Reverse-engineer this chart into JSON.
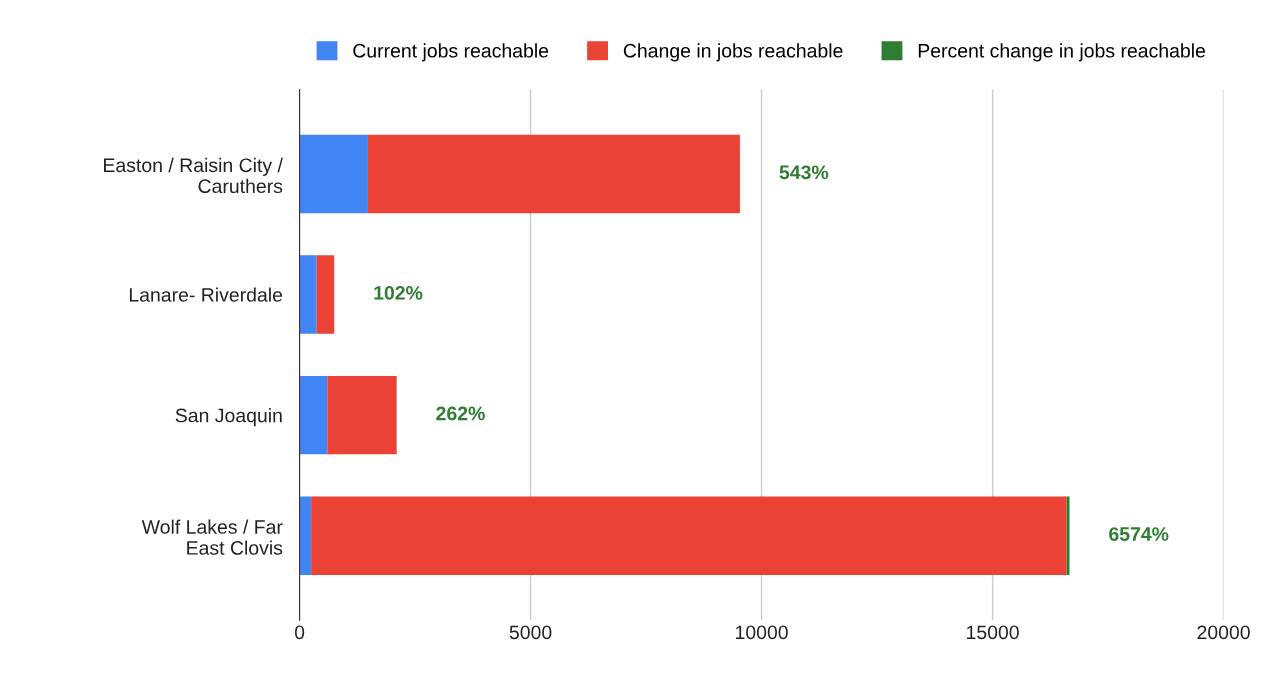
{
  "chart_data": {
    "type": "bar",
    "orientation": "horizontal",
    "stacked": true,
    "categories": [
      "Easton / Raisin City /\nCaruthers",
      "Lanare- Riverdale",
      "San Joaquin",
      "Wolf Lakes / Far\nEast Clovis"
    ],
    "series": [
      {
        "name": "Current jobs reachable",
        "color": "#4285f4",
        "values": [
          1480,
          370,
          600,
          250
        ]
      },
      {
        "name": "Change in jobs reachable",
        "color": "#ea4335",
        "values": [
          8050,
          380,
          1500,
          16350
        ]
      },
      {
        "name": "Percent change in jobs reachable",
        "color": "#2e7d32",
        "values": [
          5.43,
          1.02,
          2.62,
          65.74
        ],
        "value_labels": [
          "543%",
          "102%",
          "262%",
          "6574%"
        ]
      }
    ],
    "xlim": [
      0,
      20000
    ],
    "xticks": [
      0,
      5000,
      10000,
      15000,
      20000
    ],
    "grid": "x",
    "legend": "top"
  }
}
